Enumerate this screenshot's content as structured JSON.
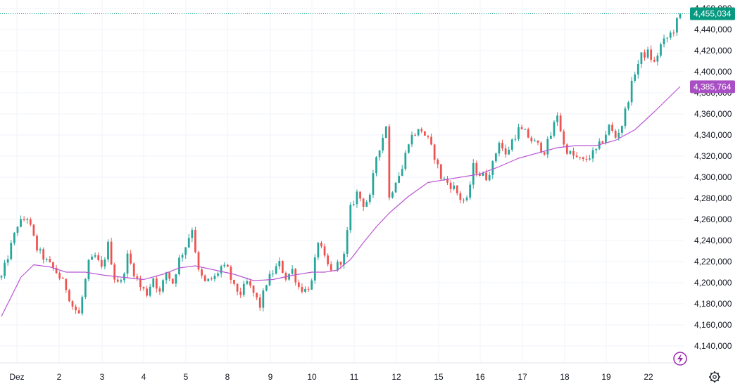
{
  "chart_data": {
    "type": "candlestick",
    "ylim": [
      4130,
      4460
    ],
    "y_ticks": [
      "4,140,000",
      "4,160,000",
      "4,180,000",
      "4,200,000",
      "4,220,000",
      "4,240,000",
      "4,260,000",
      "4,280,000",
      "4,300,000",
      "4,320,000",
      "4,340,000",
      "4,360,000",
      "4,380,000",
      "4,400,000",
      "4,420,000",
      "4,440,000",
      "4,460,000"
    ],
    "y_tick_values": [
      4140,
      4160,
      4180,
      4200,
      4220,
      4240,
      4260,
      4280,
      4300,
      4320,
      4340,
      4360,
      4380,
      4400,
      4420,
      4440,
      4460
    ],
    "x_ticks": [
      "Dez",
      "2",
      "3",
      "4",
      "5",
      "8",
      "9",
      "10",
      "11",
      "12",
      "15",
      "16",
      "17",
      "18",
      "19",
      "22"
    ],
    "session_anchors": [
      [
        0,
        4205
      ],
      [
        5,
        4255
      ],
      [
        8,
        4262
      ],
      [
        11,
        4232
      ],
      [
        14,
        4220
      ],
      [
        17,
        4210
      ],
      [
        20,
        4195
      ],
      [
        22,
        4178
      ],
      [
        24,
        4170
      ],
      [
        27,
        4218
      ],
      [
        29,
        4225
      ],
      [
        31,
        4213
      ],
      [
        33,
        4236
      ],
      [
        35,
        4205
      ],
      [
        37,
        4200
      ],
      [
        39,
        4225
      ],
      [
        41,
        4210
      ],
      [
        43,
        4196
      ],
      [
        45,
        4190
      ],
      [
        47,
        4205
      ],
      [
        49,
        4190
      ],
      [
        51,
        4210
      ],
      [
        53,
        4200
      ],
      [
        55,
        4222
      ],
      [
        57,
        4235
      ],
      [
        59,
        4252
      ],
      [
        61,
        4210
      ],
      [
        63,
        4200
      ],
      [
        66,
        4205
      ],
      [
        68,
        4215
      ],
      [
        70,
        4212
      ],
      [
        72,
        4195
      ],
      [
        74,
        4190
      ],
      [
        76,
        4200
      ],
      [
        78,
        4190
      ],
      [
        80,
        4178
      ],
      [
        82,
        4200
      ],
      [
        84,
        4210
      ],
      [
        86,
        4218
      ],
      [
        88,
        4205
      ],
      [
        90,
        4212
      ],
      [
        92,
        4196
      ],
      [
        94,
        4193
      ],
      [
        96,
        4200
      ],
      [
        98,
        4240
      ],
      [
        100,
        4222
      ],
      [
        102,
        4210
      ],
      [
        104,
        4217
      ],
      [
        106,
        4225
      ],
      [
        108,
        4270
      ],
      [
        110,
        4285
      ],
      [
        112,
        4275
      ],
      [
        114,
        4280
      ],
      [
        116,
        4320
      ],
      [
        118,
        4338
      ],
      [
        119,
        4350
      ],
      [
        120,
        4280
      ],
      [
        122,
        4298
      ],
      [
        124,
        4308
      ],
      [
        126,
        4335
      ],
      [
        128,
        4342
      ],
      [
        130,
        4345
      ],
      [
        132,
        4335
      ],
      [
        134,
        4320
      ],
      [
        136,
        4300
      ],
      [
        138,
        4295
      ],
      [
        140,
        4290
      ],
      [
        142,
        4280
      ],
      [
        144,
        4277
      ],
      [
        146,
        4310
      ],
      [
        148,
        4303
      ],
      [
        150,
        4300
      ],
      [
        152,
        4312
      ],
      [
        154,
        4335
      ],
      [
        156,
        4320
      ],
      [
        158,
        4335
      ],
      [
        160,
        4345
      ],
      [
        162,
        4342
      ],
      [
        164,
        4335
      ],
      [
        166,
        4330
      ],
      [
        168,
        4325
      ],
      [
        170,
        4340
      ],
      [
        172,
        4360
      ],
      [
        174,
        4330
      ],
      [
        176,
        4322
      ],
      [
        178,
        4318
      ],
      [
        180,
        4315
      ],
      [
        182,
        4320
      ],
      [
        184,
        4325
      ],
      [
        186,
        4335
      ],
      [
        188,
        4348
      ],
      [
        190,
        4338
      ],
      [
        192,
        4350
      ],
      [
        194,
        4375
      ],
      [
        196,
        4400
      ],
      [
        198,
        4415
      ],
      [
        200,
        4418
      ],
      [
        202,
        4408
      ],
      [
        204,
        4425
      ],
      [
        206,
        4432
      ],
      [
        208,
        4440
      ],
      [
        210,
        4455
      ]
    ],
    "ma_anchors": [
      [
        0,
        4168
      ],
      [
        6,
        4205
      ],
      [
        10,
        4217
      ],
      [
        15,
        4215
      ],
      [
        20,
        4210
      ],
      [
        26,
        4210
      ],
      [
        32,
        4207
      ],
      [
        38,
        4205
      ],
      [
        44,
        4203
      ],
      [
        50,
        4208
      ],
      [
        55,
        4214
      ],
      [
        60,
        4216
      ],
      [
        66,
        4212
      ],
      [
        72,
        4208
      ],
      [
        78,
        4202
      ],
      [
        84,
        4203
      ],
      [
        90,
        4207
      ],
      [
        96,
        4210
      ],
      [
        100,
        4210
      ],
      [
        104,
        4212
      ],
      [
        108,
        4222
      ],
      [
        112,
        4238
      ],
      [
        116,
        4253
      ],
      [
        120,
        4266
      ],
      [
        126,
        4282
      ],
      [
        132,
        4295
      ],
      [
        138,
        4298
      ],
      [
        142,
        4300
      ],
      [
        148,
        4303
      ],
      [
        154,
        4310
      ],
      [
        160,
        4318
      ],
      [
        166,
        4323
      ],
      [
        172,
        4328
      ],
      [
        178,
        4330
      ],
      [
        184,
        4330
      ],
      [
        190,
        4335
      ],
      [
        196,
        4345
      ],
      [
        202,
        4362
      ],
      [
        210,
        4386
      ]
    ],
    "n_bars": 211,
    "last_price": 4455.034,
    "last_price_label": "4,455,034",
    "ma_value": 4385.764,
    "ma_label": "4,385,764",
    "grid": true
  },
  "colors": {
    "up": "#26a69a",
    "down": "#ef5350",
    "ma_line": "#ba55d3",
    "last_price_badge": "#089981",
    "ma_badge": "#a94fc4",
    "grid": "#f0f3fa",
    "dotted_line": "#089981",
    "lightning": "#9c27b0"
  },
  "icons": {
    "lightning": "lightning-icon",
    "settings": "gear-icon"
  }
}
